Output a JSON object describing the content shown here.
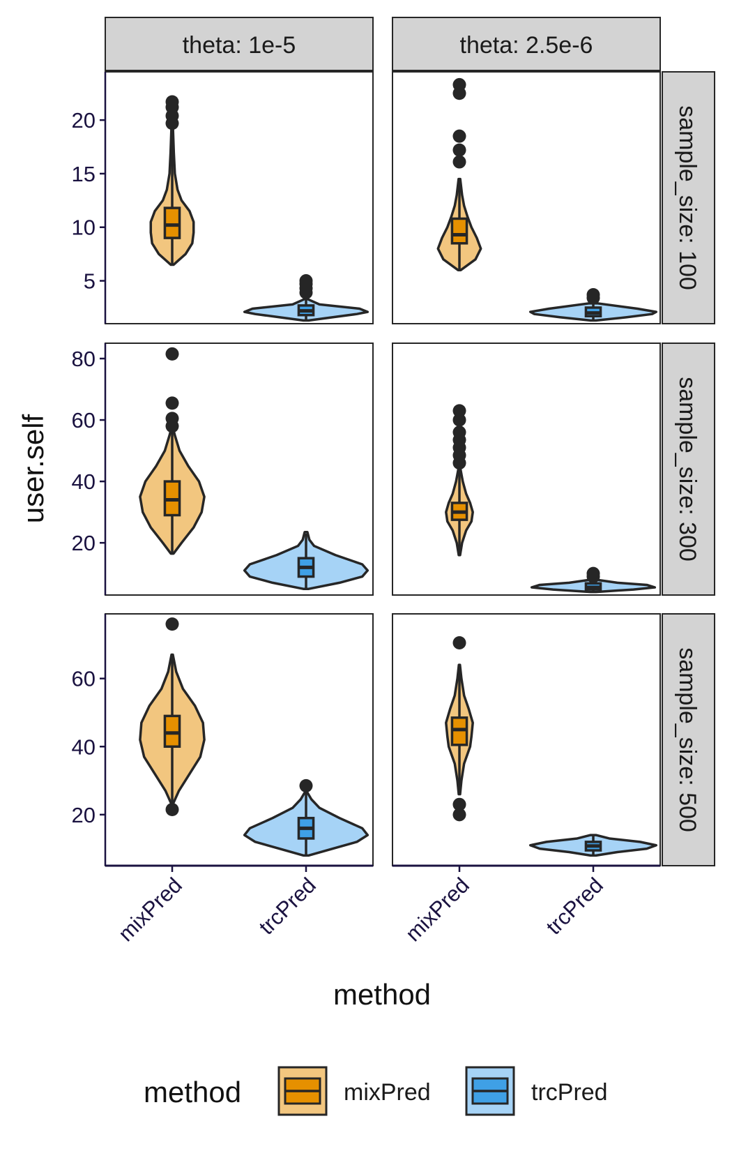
{
  "colors": {
    "mixPred_fill": "#E69000",
    "mixPred_violin": "#F2C67F",
    "trcPred_fill": "#3FA0E6",
    "trcPred_violin": "#A6D3F6",
    "outline": "#262626",
    "strip_bg": "#D3D3D3",
    "axis_line": "#1a1240",
    "tick_text": "#1a1240"
  },
  "chart_data": {
    "type": "violin",
    "facet_cols": [
      {
        "key": "theta_1e5",
        "label": "theta: 1e-5"
      },
      {
        "key": "theta_25e6",
        "label": "theta: 2.5e-6"
      }
    ],
    "facet_rows": [
      {
        "key": "n100",
        "label": "sample_size: 100",
        "ylim": [
          1,
          24.5
        ],
        "yticks": [
          5,
          10,
          15,
          20
        ],
        "ytick_labels": [
          "5",
          "10",
          "15",
          "20"
        ]
      },
      {
        "key": "n300",
        "label": "sample_size: 300",
        "ylim": [
          3,
          85
        ],
        "yticks": [
          20,
          40,
          60,
          80
        ],
        "ytick_labels": [
          "20",
          "40",
          "60",
          "80"
        ]
      },
      {
        "key": "n500",
        "label": "sample_size: 500",
        "ylim": [
          5,
          79
        ],
        "yticks": [
          20,
          40,
          60
        ],
        "ytick_labels": [
          "20",
          "40",
          "60"
        ]
      }
    ],
    "categories": [
      "mixPred",
      "trcPred"
    ],
    "xlabel": "method",
    "ylabel": "user.self",
    "legend": {
      "title": "method",
      "entries": [
        "mixPred",
        "trcPred"
      ],
      "position": "bottom"
    },
    "panels": [
      {
        "row": "n100",
        "col": "theta_1e5",
        "groups": [
          {
            "method": "mixPred",
            "violin_min": 6.5,
            "violin_max": 19.5,
            "max_halfwidth": 0.16,
            "density": [
              [
                6.5,
                0.01
              ],
              [
                7.5,
                0.1
              ],
              [
                8.5,
                0.15
              ],
              [
                9.5,
                0.16
              ],
              [
                10.5,
                0.16
              ],
              [
                11.5,
                0.13
              ],
              [
                12.5,
                0.07
              ],
              [
                13.5,
                0.04
              ],
              [
                15,
                0.02
              ],
              [
                17,
                0.012
              ],
              [
                19.5,
                0.005
              ]
            ],
            "box": {
              "q1": 9.0,
              "median": 10.2,
              "q3": 11.8,
              "whisker_low": 6.5,
              "whisker_high": 19.0
            },
            "outliers": [
              19.7,
              20.4,
              21.2,
              21.7
            ]
          },
          {
            "method": "trcPred",
            "violin_min": 1.3,
            "violin_max": 3.3,
            "max_halfwidth": 0.46,
            "density": [
              [
                1.3,
                0.02
              ],
              [
                1.6,
                0.2
              ],
              [
                1.9,
                0.38
              ],
              [
                2.1,
                0.46
              ],
              [
                2.4,
                0.4
              ],
              [
                2.8,
                0.1
              ],
              [
                3.3,
                0.01
              ]
            ],
            "box": {
              "q1": 1.8,
              "median": 2.2,
              "q3": 2.7,
              "whisker_low": 1.3,
              "whisker_high": 3.6
            },
            "outliers": [
              3.9,
              4.3,
              4.7,
              5.0
            ]
          }
        ]
      },
      {
        "row": "n100",
        "col": "theta_25e6",
        "groups": [
          {
            "method": "mixPred",
            "violin_min": 6.0,
            "violin_max": 14.5,
            "max_halfwidth": 0.16,
            "density": [
              [
                6.0,
                0.01
              ],
              [
                7,
                0.12
              ],
              [
                8,
                0.16
              ],
              [
                9,
                0.13
              ],
              [
                10,
                0.09
              ],
              [
                11,
                0.06
              ],
              [
                12,
                0.035
              ],
              [
                13,
                0.02
              ],
              [
                14.5,
                0.006
              ]
            ],
            "box": {
              "q1": 8.5,
              "median": 9.3,
              "q3": 10.8,
              "whisker_low": 6.0,
              "whisker_high": 14.5
            },
            "outliers": [
              16.1,
              17.2,
              18.5,
              22.5,
              23.3
            ]
          },
          {
            "method": "trcPred",
            "violin_min": 1.3,
            "violin_max": 2.9,
            "max_halfwidth": 0.47,
            "density": [
              [
                1.3,
                0.02
              ],
              [
                1.6,
                0.25
              ],
              [
                1.9,
                0.44
              ],
              [
                2.1,
                0.47
              ],
              [
                2.4,
                0.33
              ],
              [
                2.9,
                0.03
              ]
            ],
            "box": {
              "q1": 1.7,
              "median": 2.0,
              "q3": 2.5,
              "whisker_low": 1.3,
              "whisker_high": 3.2
            },
            "outliers": [
              3.4,
              3.7
            ]
          }
        ]
      },
      {
        "row": "n300",
        "col": "theta_1e5",
        "groups": [
          {
            "method": "mixPred",
            "violin_min": 16.5,
            "violin_max": 57.0,
            "max_halfwidth": 0.24,
            "density": [
              [
                16.5,
                0.01
              ],
              [
                20,
                0.07
              ],
              [
                25,
                0.16
              ],
              [
                30,
                0.22
              ],
              [
                35,
                0.24
              ],
              [
                40,
                0.2
              ],
              [
                45,
                0.12
              ],
              [
                50,
                0.055
              ],
              [
                55,
                0.02
              ],
              [
                57,
                0.008
              ]
            ],
            "box": {
              "q1": 29.0,
              "median": 34.0,
              "q3": 40.0,
              "whisker_low": 16.5,
              "whisker_high": 57.0
            },
            "outliers": [
              58.0,
              60.5,
              65.5,
              81.5
            ]
          },
          {
            "method": "trcPred",
            "violin_min": 5.0,
            "violin_max": 23.5,
            "max_halfwidth": 0.46,
            "density": [
              [
                5,
                0.02
              ],
              [
                7,
                0.25
              ],
              [
                9,
                0.42
              ],
              [
                11,
                0.46
              ],
              [
                13,
                0.42
              ],
              [
                16,
                0.22
              ],
              [
                19,
                0.06
              ],
              [
                21,
                0.025
              ],
              [
                23.5,
                0.01
              ]
            ],
            "box": {
              "q1": 9.0,
              "median": 12.0,
              "q3": 15.0,
              "whisker_low": 5.0,
              "whisker_high": 23.0
            },
            "outliers": []
          }
        ]
      },
      {
        "row": "n300",
        "col": "theta_25e6",
        "groups": [
          {
            "method": "mixPred",
            "violin_min": 16.0,
            "violin_max": 44.0,
            "max_halfwidth": 0.1,
            "density": [
              [
                16,
                0.005
              ],
              [
                20,
                0.02
              ],
              [
                24,
                0.05
              ],
              [
                27,
                0.09
              ],
              [
                30,
                0.1
              ],
              [
                33,
                0.08
              ],
              [
                36,
                0.05
              ],
              [
                40,
                0.025
              ],
              [
                44,
                0.008
              ]
            ],
            "box": {
              "q1": 27.5,
              "median": 30.0,
              "q3": 33.0,
              "whisker_low": 16.0,
              "whisker_high": 44.0
            },
            "outliers": [
              46.0,
              48.5,
              51.0,
              53.5,
              56.0,
              60.0,
              63.0
            ]
          },
          {
            "method": "trcPred",
            "violin_min": 4.0,
            "violin_max": 8.0,
            "max_halfwidth": 0.46,
            "density": [
              [
                4,
                0.02
              ],
              [
                4.8,
                0.3
              ],
              [
                5.5,
                0.46
              ],
              [
                6.3,
                0.4
              ],
              [
                7,
                0.18
              ],
              [
                8,
                0.02
              ]
            ],
            "box": {
              "q1": 4.8,
              "median": 5.5,
              "q3": 6.8,
              "whisker_low": 4.0,
              "whisker_high": 8.5
            },
            "outliers": [
              9.0,
              10.0
            ]
          }
        ]
      },
      {
        "row": "n500",
        "col": "theta_1e5",
        "groups": [
          {
            "method": "mixPred",
            "violin_min": 23.5,
            "violin_max": 67.0,
            "max_halfwidth": 0.24,
            "density": [
              [
                23.5,
                0.01
              ],
              [
                27,
                0.05
              ],
              [
                32,
                0.13
              ],
              [
                37,
                0.21
              ],
              [
                42,
                0.24
              ],
              [
                47,
                0.23
              ],
              [
                52,
                0.17
              ],
              [
                57,
                0.08
              ],
              [
                62,
                0.03
              ],
              [
                67,
                0.005
              ]
            ],
            "box": {
              "q1": 40.0,
              "median": 44.0,
              "q3": 49.0,
              "whisker_low": 23.5,
              "whisker_high": 67.0
            },
            "outliers": [
              21.5,
              76.0
            ]
          },
          {
            "method": "trcPred",
            "violin_min": 8.0,
            "violin_max": 26.5,
            "max_halfwidth": 0.46,
            "density": [
              [
                8,
                0.02
              ],
              [
                10,
                0.2
              ],
              [
                12,
                0.38
              ],
              [
                14,
                0.46
              ],
              [
                16,
                0.42
              ],
              [
                19,
                0.25
              ],
              [
                22,
                0.1
              ],
              [
                24.5,
                0.04
              ],
              [
                26.5,
                0.01
              ]
            ],
            "box": {
              "q1": 13.0,
              "median": 16.0,
              "q3": 19.0,
              "whisker_low": 8.0,
              "whisker_high": 26.5
            },
            "outliers": [
              28.5
            ]
          }
        ]
      },
      {
        "row": "n500",
        "col": "theta_25e6",
        "groups": [
          {
            "method": "mixPred",
            "violin_min": 26.0,
            "violin_max": 64.0,
            "max_halfwidth": 0.1,
            "density": [
              [
                26,
                0.005
              ],
              [
                30,
                0.015
              ],
              [
                35,
                0.035
              ],
              [
                40,
                0.08
              ],
              [
                43,
                0.09
              ],
              [
                47,
                0.1
              ],
              [
                51,
                0.07
              ],
              [
                55,
                0.035
              ],
              [
                60,
                0.015
              ],
              [
                64,
                0.004
              ]
            ],
            "box": {
              "q1": 40.5,
              "median": 45.0,
              "q3": 48.5,
              "whisker_low": 26.0,
              "whisker_high": 64.0
            },
            "outliers": [
              20.0,
              23.0,
              70.5
            ]
          },
          {
            "method": "trcPred",
            "violin_min": 8.0,
            "violin_max": 14.0,
            "max_halfwidth": 0.47,
            "density": [
              [
                8,
                0.02
              ],
              [
                9,
                0.18
              ],
              [
                10,
                0.4
              ],
              [
                11,
                0.47
              ],
              [
                12,
                0.35
              ],
              [
                13,
                0.12
              ],
              [
                14,
                0.02
              ]
            ],
            "box": {
              "q1": 9.5,
              "median": 10.8,
              "q3": 12.0,
              "whisker_low": 8.0,
              "whisker_high": 14.0
            },
            "outliers": []
          }
        ]
      }
    ]
  }
}
